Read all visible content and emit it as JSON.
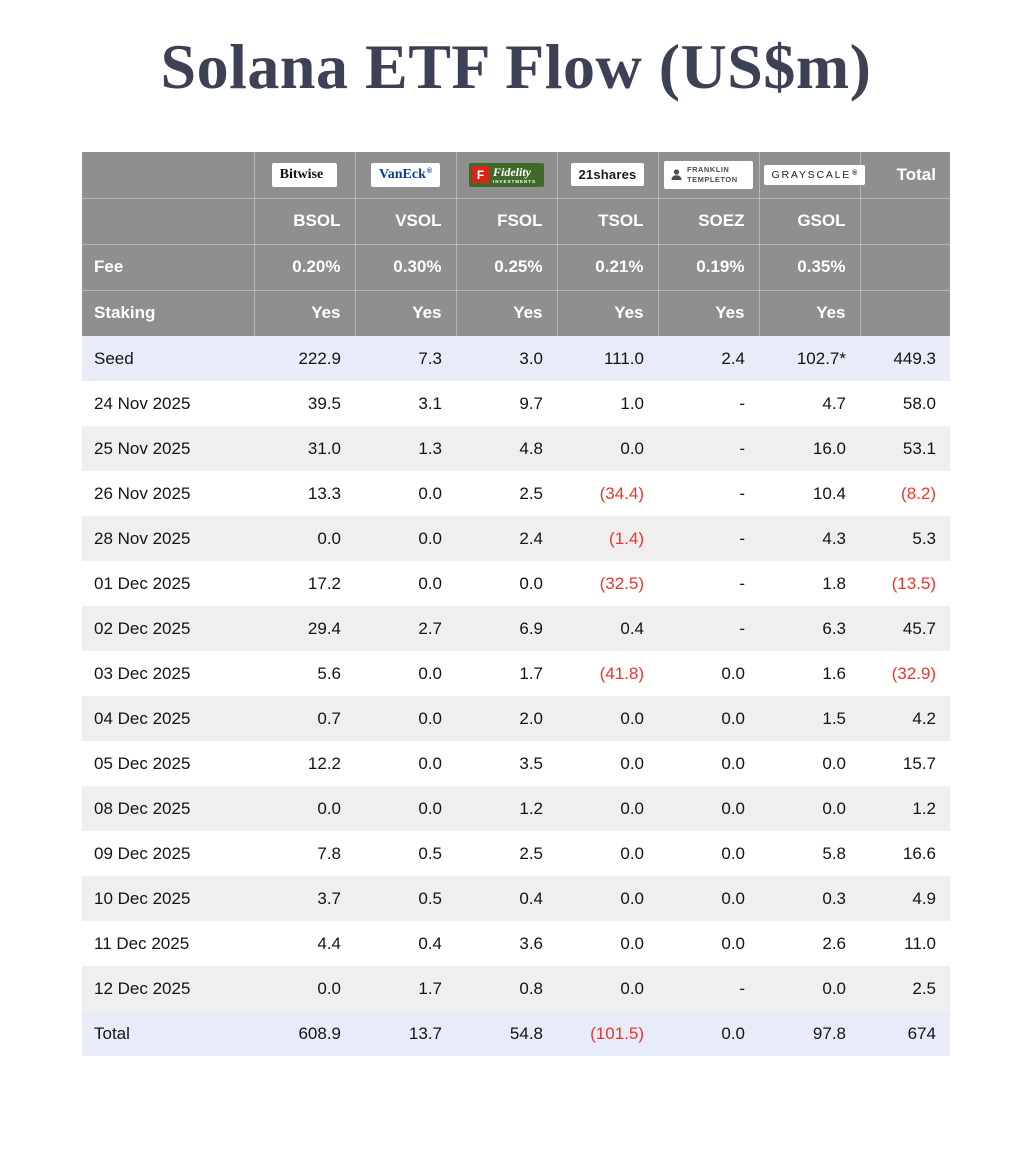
{
  "page": {
    "title": "Solana ETF Flow (US$m)"
  },
  "colors": {
    "header_gray": "#8f8f8f",
    "stripe_gray": "#efefef",
    "highlight_blue": "#e8ecf8",
    "negative_red": "#ee352b",
    "title_navy": "#3d4156",
    "fidelity_green": "#3e6b27",
    "fidelity_red": "#d9261c",
    "vaneck_blue": "#0a3e8f"
  },
  "table": {
    "header": {
      "total_label": "Total",
      "fee_label": "Fee",
      "staking_label": "Staking",
      "issuers": [
        {
          "name": "Bitwise",
          "reg": "®",
          "ticker": "BSOL",
          "fee": "0.20%",
          "staking": "Yes"
        },
        {
          "name": "VanEck",
          "reg": "®",
          "ticker": "VSOL",
          "fee": "0.30%",
          "staking": "Yes"
        },
        {
          "name": "Fidelity",
          "mark": "F",
          "sub": "INVESTMENTS",
          "ticker": "FSOL",
          "fee": "0.25%",
          "staking": "Yes"
        },
        {
          "name": "21shares",
          "ticker": "TSOL",
          "fee": "0.21%",
          "staking": "Yes"
        },
        {
          "name": "FRANKLIN TEMPLETON",
          "ticker": "SOEZ",
          "fee": "0.19%",
          "staking": "Yes"
        },
        {
          "name": "GRAYSCALE",
          "reg": "®",
          "ticker": "GSOL",
          "fee": "0.35%",
          "staking": "Yes"
        }
      ]
    },
    "rows": [
      {
        "label": "Seed",
        "values": [
          "222.9",
          "7.3",
          "3.0",
          "111.0",
          "2.4",
          "102.7*",
          "449.3"
        ],
        "highlight": true
      },
      {
        "label": "24 Nov 2025",
        "values": [
          "39.5",
          "3.1",
          "9.7",
          "1.0",
          "-",
          "4.7",
          "58.0"
        ]
      },
      {
        "label": "25 Nov 2025",
        "values": [
          "31.0",
          "1.3",
          "4.8",
          "0.0",
          "-",
          "16.0",
          "53.1"
        ]
      },
      {
        "label": "26 Nov 2025",
        "values": [
          "13.3",
          "0.0",
          "2.5",
          "(34.4)",
          "-",
          "10.4",
          "(8.2)"
        ]
      },
      {
        "label": "28 Nov 2025",
        "values": [
          "0.0",
          "0.0",
          "2.4",
          "(1.4)",
          "-",
          "4.3",
          "5.3"
        ]
      },
      {
        "label": "01 Dec 2025",
        "values": [
          "17.2",
          "0.0",
          "0.0",
          "(32.5)",
          "-",
          "1.8",
          "(13.5)"
        ]
      },
      {
        "label": "02 Dec 2025",
        "values": [
          "29.4",
          "2.7",
          "6.9",
          "0.4",
          "-",
          "6.3",
          "45.7"
        ]
      },
      {
        "label": "03 Dec 2025",
        "values": [
          "5.6",
          "0.0",
          "1.7",
          "(41.8)",
          "0.0",
          "1.6",
          "(32.9)"
        ]
      },
      {
        "label": "04 Dec 2025",
        "values": [
          "0.7",
          "0.0",
          "2.0",
          "0.0",
          "0.0",
          "1.5",
          "4.2"
        ]
      },
      {
        "label": "05 Dec 2025",
        "values": [
          "12.2",
          "0.0",
          "3.5",
          "0.0",
          "0.0",
          "0.0",
          "15.7"
        ]
      },
      {
        "label": "08 Dec 2025",
        "values": [
          "0.0",
          "0.0",
          "1.2",
          "0.0",
          "0.0",
          "0.0",
          "1.2"
        ]
      },
      {
        "label": "09 Dec 2025",
        "values": [
          "7.8",
          "0.5",
          "2.5",
          "0.0",
          "0.0",
          "5.8",
          "16.6"
        ]
      },
      {
        "label": "10 Dec 2025",
        "values": [
          "3.7",
          "0.5",
          "0.4",
          "0.0",
          "0.0",
          "0.3",
          "4.9"
        ]
      },
      {
        "label": "11 Dec 2025",
        "values": [
          "4.4",
          "0.4",
          "3.6",
          "0.0",
          "0.0",
          "2.6",
          "11.0"
        ]
      },
      {
        "label": "12 Dec 2025",
        "values": [
          "0.0",
          "1.7",
          "0.8",
          "0.0",
          "-",
          "0.0",
          "2.5"
        ]
      },
      {
        "label": "Total",
        "values": [
          "608.9",
          "13.7",
          "54.8",
          "(101.5)",
          "0.0",
          "97.8",
          "674"
        ],
        "highlight": true
      }
    ]
  },
  "chart_data": {
    "type": "table",
    "title": "Solana ETF Flow (US$m)",
    "columns": [
      "Bitwise BSOL",
      "VanEck VSOL",
      "Fidelity FSOL",
      "21shares TSOL",
      "Franklin Templeton SOEZ",
      "Grayscale GSOL",
      "Total"
    ],
    "fees_pct": [
      0.2,
      0.3,
      0.25,
      0.21,
      0.19,
      0.35
    ],
    "staking": [
      "Yes",
      "Yes",
      "Yes",
      "Yes",
      "Yes",
      "Yes"
    ],
    "row_labels": [
      "Seed",
      "24 Nov 2025",
      "25 Nov 2025",
      "26 Nov 2025",
      "28 Nov 2025",
      "01 Dec 2025",
      "02 Dec 2025",
      "03 Dec 2025",
      "04 Dec 2025",
      "05 Dec 2025",
      "08 Dec 2025",
      "09 Dec 2025",
      "10 Dec 2025",
      "11 Dec 2025",
      "12 Dec 2025",
      "Total"
    ],
    "values": [
      [
        222.9,
        7.3,
        3.0,
        111.0,
        2.4,
        102.7,
        449.3
      ],
      [
        39.5,
        3.1,
        9.7,
        1.0,
        null,
        4.7,
        58.0
      ],
      [
        31.0,
        1.3,
        4.8,
        0.0,
        null,
        16.0,
        53.1
      ],
      [
        13.3,
        0.0,
        2.5,
        -34.4,
        null,
        10.4,
        -8.2
      ],
      [
        0.0,
        0.0,
        2.4,
        -1.4,
        null,
        4.3,
        5.3
      ],
      [
        17.2,
        0.0,
        0.0,
        -32.5,
        null,
        1.8,
        -13.5
      ],
      [
        29.4,
        2.7,
        6.9,
        0.4,
        null,
        6.3,
        45.7
      ],
      [
        5.6,
        0.0,
        1.7,
        -41.8,
        0.0,
        1.6,
        -32.9
      ],
      [
        0.7,
        0.0,
        2.0,
        0.0,
        0.0,
        1.5,
        4.2
      ],
      [
        12.2,
        0.0,
        3.5,
        0.0,
        0.0,
        0.0,
        15.7
      ],
      [
        0.0,
        0.0,
        1.2,
        0.0,
        0.0,
        0.0,
        1.2
      ],
      [
        7.8,
        0.5,
        2.5,
        0.0,
        0.0,
        5.8,
        16.6
      ],
      [
        3.7,
        0.5,
        0.4,
        0.0,
        0.0,
        0.3,
        4.9
      ],
      [
        4.4,
        0.4,
        3.6,
        0.0,
        0.0,
        2.6,
        11.0
      ],
      [
        0.0,
        1.7,
        0.8,
        0.0,
        null,
        0.0,
        2.5
      ],
      [
        608.9,
        13.7,
        54.8,
        -101.5,
        0.0,
        97.8,
        674
      ]
    ]
  }
}
